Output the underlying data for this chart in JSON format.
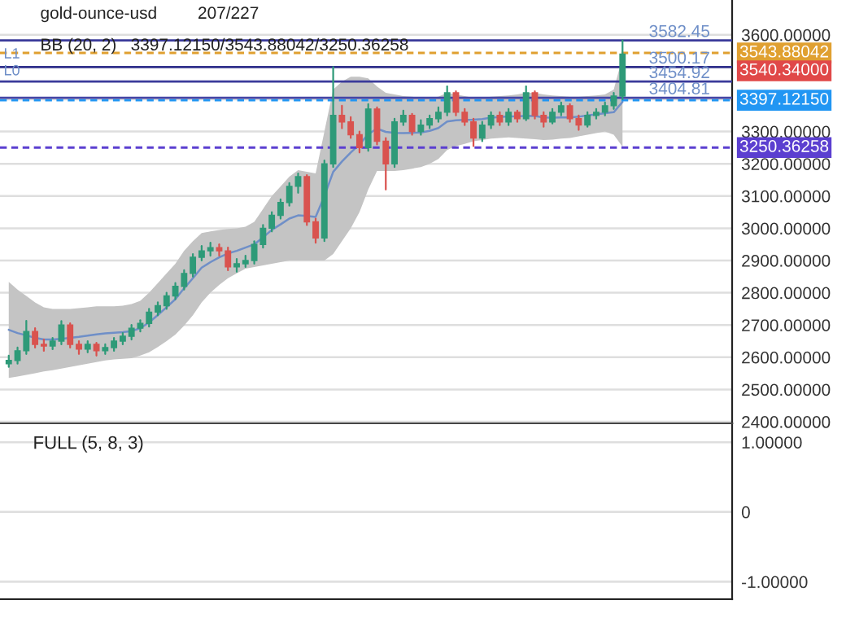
{
  "chart_data": [
    {
      "type": "candlestick",
      "title": "gold-ounce-usd",
      "subtitle": "207/227",
      "annotations": [
        "BB (20, 2)   3397.12150/3543.88042/3250.36258",
        "L1",
        "L0",
        "3540.34000"
      ],
      "categories": [
        null,
        null,
        null,
        null,
        null,
        null,
        null,
        null,
        null,
        null,
        null,
        null,
        null,
        null,
        null,
        null,
        null,
        null,
        null,
        null,
        null,
        null,
        null,
        null,
        null,
        null,
        null,
        null,
        null,
        null,
        null,
        null,
        null,
        null,
        null,
        null,
        null,
        null,
        null,
        null,
        null,
        null,
        null,
        null,
        null,
        null,
        null,
        null,
        null,
        null,
        null,
        null,
        null,
        null,
        null,
        null,
        null,
        null,
        null,
        null,
        null,
        null,
        null,
        null,
        null,
        null,
        null,
        null,
        null,
        null,
        null,
        null,
        null,
        null,
        null,
        null,
        null,
        null,
        null,
        null,
        null,
        null,
        null
      ],
      "ohlc": [
        [
          2580,
          2605,
          2570,
          2590
        ],
        [
          2590,
          2630,
          2580,
          2620
        ],
        [
          2620,
          2713,
          2610,
          2680
        ],
        [
          2680,
          2690,
          2630,
          2640
        ],
        [
          2640,
          2655,
          2620,
          2635
        ],
        [
          2635,
          2660,
          2625,
          2650
        ],
        [
          2650,
          2712,
          2640,
          2700
        ],
        [
          2700,
          2705,
          2630,
          2640
        ],
        [
          2640,
          2650,
          2610,
          2625
        ],
        [
          2625,
          2650,
          2615,
          2640
        ],
        [
          2640,
          2645,
          2605,
          2620
        ],
        [
          2620,
          2640,
          2610,
          2630
        ],
        [
          2630,
          2660,
          2620,
          2650
        ],
        [
          2650,
          2675,
          2640,
          2665
        ],
        [
          2665,
          2700,
          2655,
          2690
        ],
        [
          2690,
          2715,
          2680,
          2705
        ],
        [
          2705,
          2750,
          2695,
          2740
        ],
        [
          2740,
          2770,
          2730,
          2760
        ],
        [
          2760,
          2800,
          2750,
          2790
        ],
        [
          2790,
          2830,
          2780,
          2820
        ],
        [
          2820,
          2870,
          2810,
          2860
        ],
        [
          2860,
          2920,
          2850,
          2910
        ],
        [
          2910,
          2945,
          2900,
          2930
        ],
        [
          2930,
          2955,
          2915,
          2940
        ],
        [
          2940,
          2950,
          2915,
          2930
        ],
        [
          2930,
          2940,
          2870,
          2880
        ],
        [
          2880,
          2905,
          2865,
          2890
        ],
        [
          2890,
          2915,
          2880,
          2900
        ],
        [
          2900,
          2960,
          2890,
          2950
        ],
        [
          2950,
          3010,
          2940,
          3000
        ],
        [
          3000,
          3050,
          2990,
          3040
        ],
        [
          3040,
          3090,
          3030,
          3080
        ],
        [
          3080,
          3140,
          3070,
          3130
        ],
        [
          3130,
          3170,
          3110,
          3160
        ],
        [
          3160,
          3165,
          3010,
          3020
        ],
        [
          3020,
          3030,
          2955,
          2970
        ],
        [
          2970,
          3210,
          2960,
          3200
        ],
        [
          3200,
          3500,
          3190,
          3350
        ],
        [
          3350,
          3380,
          3310,
          3330
        ],
        [
          3330,
          3345,
          3280,
          3290
        ],
        [
          3290,
          3300,
          3235,
          3250
        ],
        [
          3250,
          3385,
          3240,
          3370
        ],
        [
          3370,
          3375,
          3260,
          3270
        ],
        [
          3270,
          3280,
          3120,
          3200
        ],
        [
          3200,
          3340,
          3190,
          3330
        ],
        [
          3330,
          3365,
          3320,
          3350
        ],
        [
          3350,
          3355,
          3290,
          3300
        ],
        [
          3300,
          3335,
          3290,
          3320
        ],
        [
          3320,
          3350,
          3310,
          3340
        ],
        [
          3340,
          3375,
          3330,
          3360
        ],
        [
          3360,
          3440,
          3350,
          3420
        ],
        [
          3420,
          3425,
          3350,
          3360
        ],
        [
          3360,
          3370,
          3320,
          3330
        ],
        [
          3330,
          3340,
          3255,
          3280
        ],
        [
          3280,
          3330,
          3270,
          3320
        ],
        [
          3320,
          3360,
          3310,
          3350
        ],
        [
          3350,
          3360,
          3320,
          3330
        ],
        [
          3330,
          3370,
          3320,
          3360
        ],
        [
          3360,
          3365,
          3330,
          3340
        ],
        [
          3340,
          3440,
          3335,
          3420
        ],
        [
          3420,
          3425,
          3340,
          3350
        ],
        [
          3350,
          3360,
          3315,
          3330
        ],
        [
          3330,
          3370,
          3325,
          3360
        ],
        [
          3360,
          3390,
          3350,
          3380
        ],
        [
          3380,
          3385,
          3330,
          3340
        ],
        [
          3340,
          3350,
          3305,
          3320
        ],
        [
          3320,
          3360,
          3315,
          3350
        ],
        [
          3350,
          3370,
          3340,
          3360
        ],
        [
          3360,
          3390,
          3350,
          3380
        ],
        [
          3380,
          3420,
          3370,
          3410
        ],
        [
          3410,
          3582.45,
          3400,
          3540
        ],
        null,
        null,
        null,
        null,
        null,
        null,
        null,
        null,
        null,
        null,
        null,
        null
      ],
      "colors": [
        "#2e9a78",
        "#2e9a78",
        "#2e9a78",
        "#d9534f",
        "#d9534f",
        "#2e9a78",
        "#2e9a78",
        "#d9534f",
        "#d9534f",
        "#2e9a78",
        "#d9534f",
        "#2e9a78",
        "#2e9a78",
        "#2e9a78",
        "#2e9a78",
        "#2e9a78",
        "#2e9a78",
        "#2e9a78",
        "#2e9a78",
        "#2e9a78",
        "#2e9a78",
        "#2e9a78",
        "#2e9a78",
        "#2e9a78",
        "#d9534f",
        "#d9534f",
        "#2e9a78",
        "#2e9a78",
        "#2e9a78",
        "#2e9a78",
        "#2e9a78",
        "#2e9a78",
        "#2e9a78",
        "#2e9a78",
        "#d9534f",
        "#d9534f",
        "#2e9a78",
        "#2e9a78",
        "#d9534f",
        "#d9534f",
        "#d9534f",
        "#2e9a78",
        "#d9534f",
        "#d9534f",
        "#2e9a78",
        "#2e9a78",
        "#d9534f",
        "#2e9a78",
        "#2e9a78",
        "#2e9a78",
        "#2e9a78",
        "#d9534f",
        "#d9534f",
        "#d9534f",
        "#2e9a78",
        "#2e9a78",
        "#d9534f",
        "#2e9a78",
        "#d9534f",
        "#2e9a78",
        "#d9534f",
        "#d9534f",
        "#2e9a78",
        "#2e9a78",
        "#d9534f",
        "#d9534f",
        "#2e9a78",
        "#2e9a78",
        "#2e9a78",
        "#2e9a78",
        "#2e9a78",
        null,
        null,
        null,
        null,
        null,
        null,
        null,
        null,
        null,
        null,
        null,
        null
      ],
      "series": [
        {
          "type": "line",
          "color": "#6f8fc8",
          "values": [
            2685,
            2675,
            2668,
            2660,
            2655,
            2655,
            2657,
            2660,
            2663,
            2667,
            2671,
            2674,
            2676,
            2678,
            2681,
            2690,
            2708,
            2731,
            2755,
            2780,
            2814,
            2845,
            2878,
            2895,
            2910,
            2922,
            2930,
            2940,
            2950,
            2972,
            2995,
            3012,
            3030,
            3040,
            3038,
            3035,
            3100,
            3175,
            3207,
            3235,
            3260,
            3292,
            3309,
            3299,
            3296,
            3295,
            3296,
            3297,
            3302,
            3311,
            3331,
            3335,
            3336,
            3337,
            3339,
            3343,
            3345,
            3347,
            3347,
            3349,
            3348,
            3344,
            3343,
            3344,
            3344,
            3346,
            3350,
            3353,
            3357,
            3360,
            3392,
            null,
            null,
            null,
            null,
            null,
            null,
            null,
            null,
            null,
            null,
            null,
            null
          ],
          "upper": [
            2834,
            2810,
            2790,
            2770,
            2755,
            2750,
            2750,
            2750,
            2752,
            2755,
            2758,
            2758,
            2758,
            2760,
            2765,
            2775,
            2800,
            2830,
            2860,
            2890,
            2930,
            2960,
            2985,
            2990,
            2995,
            2998,
            3000,
            3005,
            3020,
            3060,
            3100,
            3130,
            3160,
            3180,
            3175,
            3170,
            3300,
            3430,
            3455,
            3470,
            3470,
            3465,
            3440,
            3420,
            3415,
            3410,
            3408,
            3405,
            3405,
            3408,
            3420,
            3415,
            3410,
            3405,
            3405,
            3408,
            3410,
            3412,
            3415,
            3420,
            3420,
            3415,
            3412,
            3410,
            3408,
            3408,
            3410,
            3412,
            3415,
            3430,
            3531,
            null,
            null,
            null,
            null,
            null,
            null,
            null,
            null,
            null,
            null,
            null,
            null
          ],
          "lower": [
            2536,
            2540,
            2545,
            2550,
            2556,
            2560,
            2565,
            2570,
            2575,
            2580,
            2585,
            2590,
            2593,
            2595,
            2597,
            2605,
            2615,
            2632,
            2650,
            2670,
            2698,
            2730,
            2770,
            2800,
            2824,
            2845,
            2860,
            2875,
            2880,
            2885,
            2890,
            2895,
            2900,
            2900,
            2900,
            2900,
            2900,
            2920,
            2960,
            3000,
            3050,
            3120,
            3178,
            3178,
            3178,
            3180,
            3185,
            3190,
            3200,
            3215,
            3243,
            3255,
            3262,
            3270,
            3274,
            3278,
            3280,
            3282,
            3280,
            3278,
            3276,
            3274,
            3275,
            3278,
            3280,
            3285,
            3290,
            3295,
            3300,
            3290,
            3253,
            null,
            null,
            null,
            null,
            null,
            null,
            null,
            null,
            null,
            null,
            null,
            null
          ]
        }
      ],
      "ref_lines": [
        {
          "axis": "y",
          "value": 3582.45,
          "label": "3582.45",
          "color": "#3a3a9a",
          "line_style": "solid"
        },
        {
          "axis": "y",
          "value": 3543.88042,
          "label": "3543.88042",
          "color": "#e0a030",
          "line_style": "dashed"
        },
        {
          "axis": "y",
          "value": 3500.17,
          "label": "3500.17",
          "color": "#30308c",
          "line_style": "solid"
        },
        {
          "axis": "y",
          "value": 3454.92,
          "label": "3454.92",
          "color": "#3a3a9a",
          "line_style": "solid"
        },
        {
          "axis": "y",
          "value": 3404.81,
          "label": "3404.81",
          "color": "#4646a6",
          "line_style": "solid"
        },
        {
          "axis": "y",
          "value": 3397.1215,
          "label": "3397.12150",
          "color": "#2196f3",
          "line_style": "dashed"
        },
        {
          "axis": "y",
          "value": 3250.36258,
          "label": "3250.36258",
          "color": "#5b3fd0",
          "line_style": "dashed"
        }
      ],
      "ylim": [
        2395,
        3708
      ],
      "yticks": [
        {
          "value": 2400,
          "label": "2400.00000"
        },
        {
          "value": 2500,
          "label": "2500.00000"
        },
        {
          "value": 2600,
          "label": "2600.00000"
        },
        {
          "value": 2700,
          "label": "2700.00000"
        },
        {
          "value": 2800,
          "label": "2800.00000"
        },
        {
          "value": 2900,
          "label": "2900.00000"
        },
        {
          "value": 3000,
          "label": "3000.00000"
        },
        {
          "value": 3100,
          "label": "3100.00000"
        },
        {
          "value": 3200,
          "label": "3200.00000"
        },
        {
          "value": 3300,
          "label": "3300.00000"
        },
        {
          "value": 3400,
          "label": null
        },
        {
          "value": 3500,
          "label": null
        },
        {
          "value": 3600,
          "label": "3600.00000"
        }
      ],
      "grid": "y"
    },
    {
      "type": "line",
      "title": "FULL (5, 8, 3)",
      "categories": [
        null,
        null,
        null,
        null
      ],
      "values": [
        null,
        null,
        null,
        null
      ],
      "ylim": [
        -1.25,
        1.27
      ],
      "yticks": [
        {
          "value": 1,
          "label": "1.00000"
        },
        0,
        {
          "value": -1,
          "label": "-1.00000"
        }
      ],
      "grid": "y"
    }
  ]
}
